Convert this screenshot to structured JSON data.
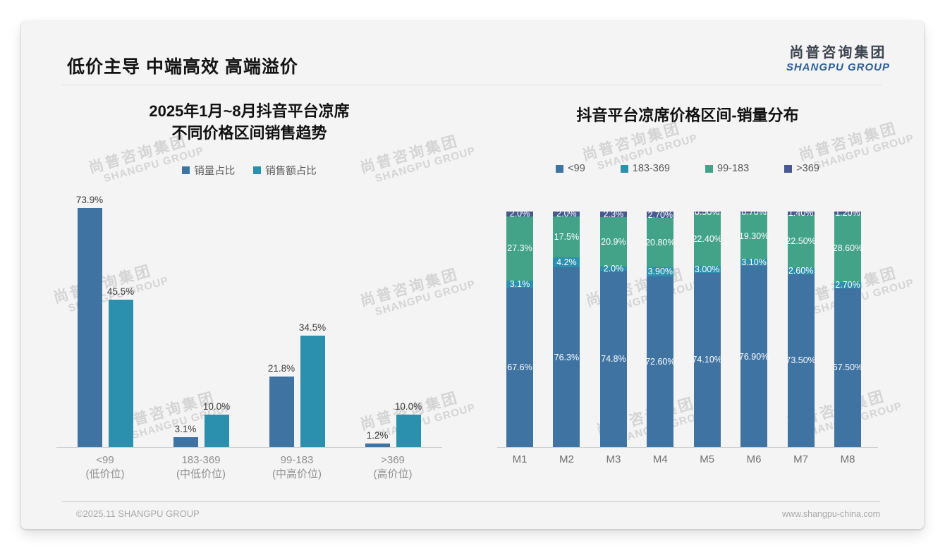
{
  "header": {
    "title": "低价主导 中端高效 高端溢价"
  },
  "logo": {
    "cn": "尚普咨询集团",
    "en": "SHANGPU GROUP"
  },
  "watermark": {
    "cn": "尚普咨询集团",
    "en": "SHANGPU GROUP"
  },
  "footer": {
    "left": "©2025.11 SHANGPU GROUP",
    "right": "www.shangpu-china.com"
  },
  "colors": {
    "steel_blue": "#3f73a2",
    "teal": "#2b90ad",
    "green": "#43a389",
    "dark_blue": "#47598f",
    "axis": "#cccccc"
  },
  "chart_data": [
    {
      "type": "bar",
      "title_lines": [
        "2025年1月~8月抖音平台凉席",
        "不同价格区间销售趋势"
      ],
      "categories": [
        [
          "<99",
          "(低价位)"
        ],
        [
          "183-369",
          "(中低价位)"
        ],
        [
          "99-183",
          "(中高价位)"
        ],
        [
          ">369",
          "(高价位)"
        ]
      ],
      "series": [
        {
          "name": "销量占比",
          "color": "#3f73a2",
          "values": [
            73.9,
            3.1,
            21.8,
            1.2
          ],
          "labels": [
            "73.9%",
            "3.1%",
            "21.8%",
            "1.2%"
          ]
        },
        {
          "name": "销售额占比",
          "color": "#2b90ad",
          "values": [
            45.5,
            10.0,
            34.5,
            10.0
          ],
          "labels": [
            "45.5%",
            "10.0%",
            "34.5%",
            "10.0%"
          ]
        }
      ],
      "ylim": [
        0,
        80
      ],
      "grid": false,
      "legend_position": "top"
    },
    {
      "type": "stacked-bar",
      "title": "抖音平台凉席价格区间-销量分布",
      "categories": [
        "M1",
        "M2",
        "M3",
        "M4",
        "M5",
        "M6",
        "M7",
        "M8"
      ],
      "series": [
        {
          "name": "<99",
          "color": "#3f73a2",
          "values": [
            67.6,
            76.3,
            74.8,
            72.6,
            74.1,
            76.9,
            73.5,
            67.5
          ],
          "labels": [
            "67.6%",
            "76.3%",
            "74.8%",
            "72.60%",
            "74.10%",
            "76.90%",
            "73.50%",
            "67.50%"
          ]
        },
        {
          "name": "183-369",
          "color": "#2b90ad",
          "values": [
            3.1,
            4.2,
            2.0,
            3.9,
            3.0,
            3.1,
            2.6,
            2.7
          ],
          "labels": [
            "3.1%",
            "4.2%",
            "2.0%",
            "3.90%",
            "3.00%",
            "3.10%",
            "2.60%",
            "2.70%"
          ]
        },
        {
          "name": "99-183",
          "color": "#43a389",
          "values": [
            27.3,
            17.5,
            20.9,
            20.8,
            22.4,
            19.3,
            22.5,
            28.6
          ],
          "labels": [
            "27.3%",
            "17.5%",
            "20.9%",
            "20.80%",
            "22.40%",
            "19.30%",
            "22.50%",
            "28.60%"
          ]
        },
        {
          "name": ">369",
          "color": "#47598f",
          "values": [
            2.0,
            2.0,
            2.3,
            2.7,
            0.5,
            0.7,
            1.4,
            1.2
          ],
          "labels": [
            "2.0%",
            "2.0%",
            "2.3%",
            "2.70%",
            "0.50%",
            "0.70%",
            "1.40%",
            "1.20%"
          ]
        }
      ],
      "ylim": [
        0,
        100
      ],
      "grid": false,
      "legend_position": "top"
    }
  ]
}
